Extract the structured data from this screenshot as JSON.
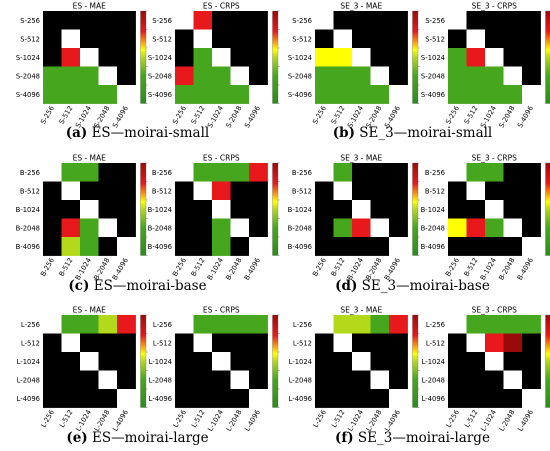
{
  "colors": {
    "black": "#000000",
    "white": "#ffffff",
    "dark_green": "#2e8b1c",
    "green": "#46a61e",
    "lime": "#b4d81a",
    "yellow": "#ffff00",
    "red": "#e8191c",
    "dark_red": "#9b0a0a"
  },
  "captions": [
    {
      "letter": "(a)",
      "text": "ES—moirai-small"
    },
    {
      "letter": "(b)",
      "text": "SE_3—moirai-small"
    },
    {
      "letter": "(c)",
      "text": "ES—moirai-base"
    },
    {
      "letter": "(d)",
      "text": "SE_3—moirai-base"
    },
    {
      "letter": "(e)",
      "text": "ES—moirai-large"
    },
    {
      "letter": "(f)",
      "text": "SE_3—moirai-large"
    }
  ],
  "chart_data": [
    {
      "type": "heatmap",
      "title": "ES - MAE",
      "labels": [
        "S-256",
        "S-512",
        "S-1024",
        "S-2048",
        "S-4096"
      ],
      "cells": [
        [
          "k",
          "k",
          "k",
          "k",
          "k"
        ],
        [
          "k",
          "w",
          "k",
          "k",
          "k"
        ],
        [
          "k",
          "r",
          "w",
          "k",
          "k"
        ],
        [
          "g",
          "g",
          "g",
          "w",
          "k"
        ],
        [
          "g",
          "g",
          "g",
          "g",
          "w"
        ]
      ]
    },
    {
      "type": "heatmap",
      "title": "ES - CRPS",
      "labels": [
        "S-256",
        "S-512",
        "S-1024",
        "S-2048",
        "S-4096"
      ],
      "cells": [
        [
          "w",
          "r",
          "k",
          "k",
          "k"
        ],
        [
          "k",
          "w",
          "k",
          "k",
          "k"
        ],
        [
          "k",
          "g",
          "w",
          "k",
          "k"
        ],
        [
          "r",
          "g",
          "g",
          "w",
          "k"
        ],
        [
          "g",
          "g",
          "g",
          "g",
          "w"
        ]
      ]
    },
    {
      "type": "heatmap",
      "title": "SE_3 - MAE",
      "labels": [
        "S-256",
        "S-512",
        "S-1024",
        "S-2048",
        "S-4096"
      ],
      "cells": [
        [
          "w",
          "k",
          "k",
          "k",
          "k"
        ],
        [
          "k",
          "w",
          "k",
          "k",
          "k"
        ],
        [
          "y",
          "y",
          "w",
          "k",
          "k"
        ],
        [
          "g",
          "g",
          "g",
          "w",
          "k"
        ],
        [
          "g",
          "g",
          "g",
          "g",
          "w"
        ]
      ]
    },
    {
      "type": "heatmap",
      "title": "SE_3 - CRPS",
      "labels": [
        "S-256",
        "S-512",
        "S-1024",
        "S-2048",
        "S-4096"
      ],
      "cells": [
        [
          "w",
          "k",
          "k",
          "k",
          "k"
        ],
        [
          "k",
          "w",
          "k",
          "k",
          "k"
        ],
        [
          "g",
          "r",
          "w",
          "k",
          "k"
        ],
        [
          "g",
          "g",
          "g",
          "w",
          "k"
        ],
        [
          "g",
          "g",
          "g",
          "g",
          "w"
        ]
      ]
    },
    {
      "type": "heatmap",
      "title": "ES - MAE",
      "labels": [
        "B-256",
        "B-512",
        "B-1024",
        "B-2048",
        "B-4096"
      ],
      "cells": [
        [
          "w",
          "g",
          "g",
          "k",
          "k"
        ],
        [
          "k",
          "w",
          "k",
          "k",
          "k"
        ],
        [
          "k",
          "k",
          "w",
          "k",
          "k"
        ],
        [
          "k",
          "R",
          "g",
          "w",
          "k"
        ],
        [
          "k",
          "l",
          "g",
          "k",
          "w"
        ]
      ]
    },
    {
      "type": "heatmap",
      "title": "ES - CRPS",
      "labels": [
        "B-256",
        "B-512",
        "B-1024",
        "B-2048",
        "B-4096"
      ],
      "cells": [
        [
          "w",
          "g",
          "g",
          "g",
          "r"
        ],
        [
          "k",
          "w",
          "r",
          "k",
          "k"
        ],
        [
          "k",
          "k",
          "w",
          "k",
          "k"
        ],
        [
          "k",
          "k",
          "g",
          "w",
          "k"
        ],
        [
          "k",
          "k",
          "g",
          "k",
          "w"
        ]
      ]
    },
    {
      "type": "heatmap",
      "title": "SE_3 - MAE",
      "labels": [
        "B-256",
        "B-512",
        "B-1024",
        "B-2048",
        "B-4096"
      ],
      "cells": [
        [
          "w",
          "g",
          "k",
          "k",
          "k"
        ],
        [
          "k",
          "w",
          "k",
          "k",
          "k"
        ],
        [
          "k",
          "k",
          "w",
          "k",
          "k"
        ],
        [
          "k",
          "g",
          "R",
          "w",
          "k"
        ],
        [
          "k",
          "k",
          "k",
          "k",
          "w"
        ]
      ]
    },
    {
      "type": "heatmap",
      "title": "SE_3 - CRPS",
      "labels": [
        "B-256",
        "B-512",
        "B-1024",
        "B-2048",
        "B-4096"
      ],
      "cells": [
        [
          "w",
          "g",
          "g",
          "k",
          "k"
        ],
        [
          "k",
          "w",
          "k",
          "k",
          "k"
        ],
        [
          "k",
          "k",
          "w",
          "k",
          "k"
        ],
        [
          "y",
          "r",
          "g",
          "w",
          "k"
        ],
        [
          "k",
          "k",
          "k",
          "k",
          "w"
        ]
      ]
    },
    {
      "type": "heatmap",
      "title": "ES - MAE",
      "labels": [
        "L-256",
        "L-512",
        "L-1024",
        "L-2048",
        "L-4096"
      ],
      "cells": [
        [
          "w",
          "g",
          "g",
          "l",
          "r"
        ],
        [
          "k",
          "w",
          "k",
          "k",
          "k"
        ],
        [
          "k",
          "k",
          "w",
          "k",
          "k"
        ],
        [
          "k",
          "k",
          "k",
          "w",
          "k"
        ],
        [
          "k",
          "k",
          "k",
          "k",
          "w"
        ]
      ]
    },
    {
      "type": "heatmap",
      "title": "ES - CRPS",
      "labels": [
        "L-256",
        "L-512",
        "L-1024",
        "L-2048",
        "L-4096"
      ],
      "cells": [
        [
          "w",
          "g",
          "g",
          "g",
          "g"
        ],
        [
          "k",
          "w",
          "k",
          "k",
          "k"
        ],
        [
          "k",
          "k",
          "w",
          "k",
          "k"
        ],
        [
          "k",
          "k",
          "k",
          "w",
          "k"
        ],
        [
          "k",
          "k",
          "k",
          "k",
          "w"
        ]
      ]
    },
    {
      "type": "heatmap",
      "title": "SE_3 - MAE",
      "labels": [
        "L-256",
        "L-512",
        "L-1024",
        "L-2048",
        "L-4096"
      ],
      "cells": [
        [
          "w",
          "l",
          "l",
          "g",
          "r"
        ],
        [
          "k",
          "w",
          "k",
          "k",
          "k"
        ],
        [
          "k",
          "k",
          "w",
          "k",
          "k"
        ],
        [
          "k",
          "k",
          "k",
          "w",
          "k"
        ],
        [
          "k",
          "k",
          "k",
          "k",
          "w"
        ]
      ]
    },
    {
      "type": "heatmap",
      "title": "SE_3 - CRPS",
      "labels": [
        "L-256",
        "L-512",
        "L-1024",
        "L-2048",
        "L-4096"
      ],
      "cells": [
        [
          "w",
          "g",
          "g",
          "g",
          "g"
        ],
        [
          "k",
          "w",
          "R",
          "D",
          "k"
        ],
        [
          "k",
          "k",
          "w",
          "k",
          "k"
        ],
        [
          "k",
          "k",
          "k",
          "w",
          "k"
        ],
        [
          "k",
          "k",
          "k",
          "k",
          "w"
        ]
      ]
    }
  ]
}
